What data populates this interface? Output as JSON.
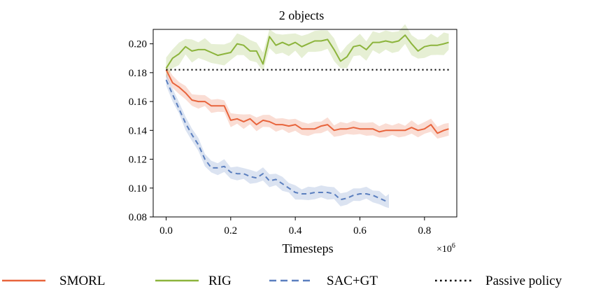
{
  "chart_data": {
    "type": "line",
    "title": "2 objects",
    "xlabel": "Timesteps",
    "ylabel": "",
    "x_multiplier_label": "×10",
    "x_multiplier_exp": "6",
    "xlim": [
      -0.04,
      0.9
    ],
    "ylim": [
      0.08,
      0.21
    ],
    "xticks": [
      0.0,
      0.2,
      0.4,
      0.6,
      0.8
    ],
    "xtick_labels": [
      "0.0",
      "0.2",
      "0.4",
      "0.6",
      "0.8"
    ],
    "yticks": [
      0.08,
      0.1,
      0.12,
      0.14,
      0.16,
      0.18,
      0.2
    ],
    "ytick_labels": [
      "0.08",
      "0.10",
      "0.12",
      "0.14",
      "0.16",
      "0.18",
      "0.20"
    ],
    "grid": false,
    "legend_position": "bottom",
    "series": [
      {
        "name": "SMORL",
        "color": "#e8643c",
        "style": "solid",
        "x": [
          0.0,
          0.02,
          0.04,
          0.06,
          0.08,
          0.1,
          0.12,
          0.14,
          0.16,
          0.18,
          0.2,
          0.22,
          0.24,
          0.26,
          0.28,
          0.3,
          0.32,
          0.34,
          0.36,
          0.38,
          0.4,
          0.42,
          0.44,
          0.46,
          0.48,
          0.5,
          0.52,
          0.54,
          0.56,
          0.58,
          0.6,
          0.62,
          0.64,
          0.66,
          0.68,
          0.7,
          0.72,
          0.74,
          0.76,
          0.78,
          0.8,
          0.82,
          0.84,
          0.86,
          0.875
        ],
        "y": [
          0.182,
          0.173,
          0.17,
          0.166,
          0.161,
          0.16,
          0.16,
          0.157,
          0.157,
          0.157,
          0.147,
          0.148,
          0.146,
          0.148,
          0.144,
          0.147,
          0.146,
          0.144,
          0.144,
          0.143,
          0.144,
          0.141,
          0.141,
          0.141,
          0.143,
          0.144,
          0.14,
          0.141,
          0.141,
          0.142,
          0.141,
          0.141,
          0.141,
          0.139,
          0.14,
          0.14,
          0.14,
          0.14,
          0.142,
          0.14,
          0.141,
          0.144,
          0.138,
          0.14,
          0.141
        ],
        "band": 0.005
      },
      {
        "name": "RIG",
        "color": "#8cb43c",
        "style": "solid",
        "x": [
          0.0,
          0.02,
          0.04,
          0.06,
          0.08,
          0.1,
          0.12,
          0.14,
          0.16,
          0.18,
          0.2,
          0.22,
          0.24,
          0.26,
          0.28,
          0.3,
          0.32,
          0.34,
          0.36,
          0.38,
          0.4,
          0.42,
          0.44,
          0.46,
          0.48,
          0.5,
          0.52,
          0.54,
          0.56,
          0.58,
          0.6,
          0.62,
          0.64,
          0.66,
          0.68,
          0.7,
          0.72,
          0.74,
          0.76,
          0.78,
          0.8,
          0.82,
          0.84,
          0.86,
          0.875
        ],
        "y": [
          0.183,
          0.19,
          0.193,
          0.198,
          0.195,
          0.196,
          0.196,
          0.194,
          0.192,
          0.193,
          0.194,
          0.2,
          0.199,
          0.195,
          0.195,
          0.186,
          0.205,
          0.199,
          0.201,
          0.199,
          0.201,
          0.198,
          0.2,
          0.202,
          0.202,
          0.203,
          0.196,
          0.188,
          0.191,
          0.198,
          0.199,
          0.196,
          0.201,
          0.201,
          0.202,
          0.201,
          0.202,
          0.206,
          0.2,
          0.195,
          0.198,
          0.199,
          0.199,
          0.2,
          0.201
        ],
        "band": 0.008
      },
      {
        "name": "SAC+GT",
        "color": "#5b7fbf",
        "style": "dashed",
        "x": [
          0.0,
          0.02,
          0.04,
          0.06,
          0.08,
          0.1,
          0.12,
          0.14,
          0.16,
          0.18,
          0.2,
          0.22,
          0.24,
          0.26,
          0.28,
          0.3,
          0.32,
          0.34,
          0.36,
          0.38,
          0.4,
          0.42,
          0.44,
          0.46,
          0.48,
          0.5,
          0.52,
          0.54,
          0.56,
          0.58,
          0.6,
          0.62,
          0.64,
          0.66,
          0.68,
          0.69
        ],
        "y": [
          0.175,
          0.165,
          0.155,
          0.145,
          0.137,
          0.13,
          0.12,
          0.114,
          0.114,
          0.115,
          0.111,
          0.11,
          0.11,
          0.108,
          0.107,
          0.11,
          0.105,
          0.106,
          0.103,
          0.1,
          0.097,
          0.096,
          0.096,
          0.097,
          0.097,
          0.097,
          0.096,
          0.092,
          0.093,
          0.095,
          0.096,
          0.096,
          0.095,
          0.093,
          0.091,
          0.091
        ],
        "band": 0.005
      },
      {
        "name": "Passive policy",
        "color": "#000000",
        "style": "dotted",
        "x": [
          0.0,
          0.875
        ],
        "y": [
          0.182,
          0.182
        ]
      }
    ]
  }
}
